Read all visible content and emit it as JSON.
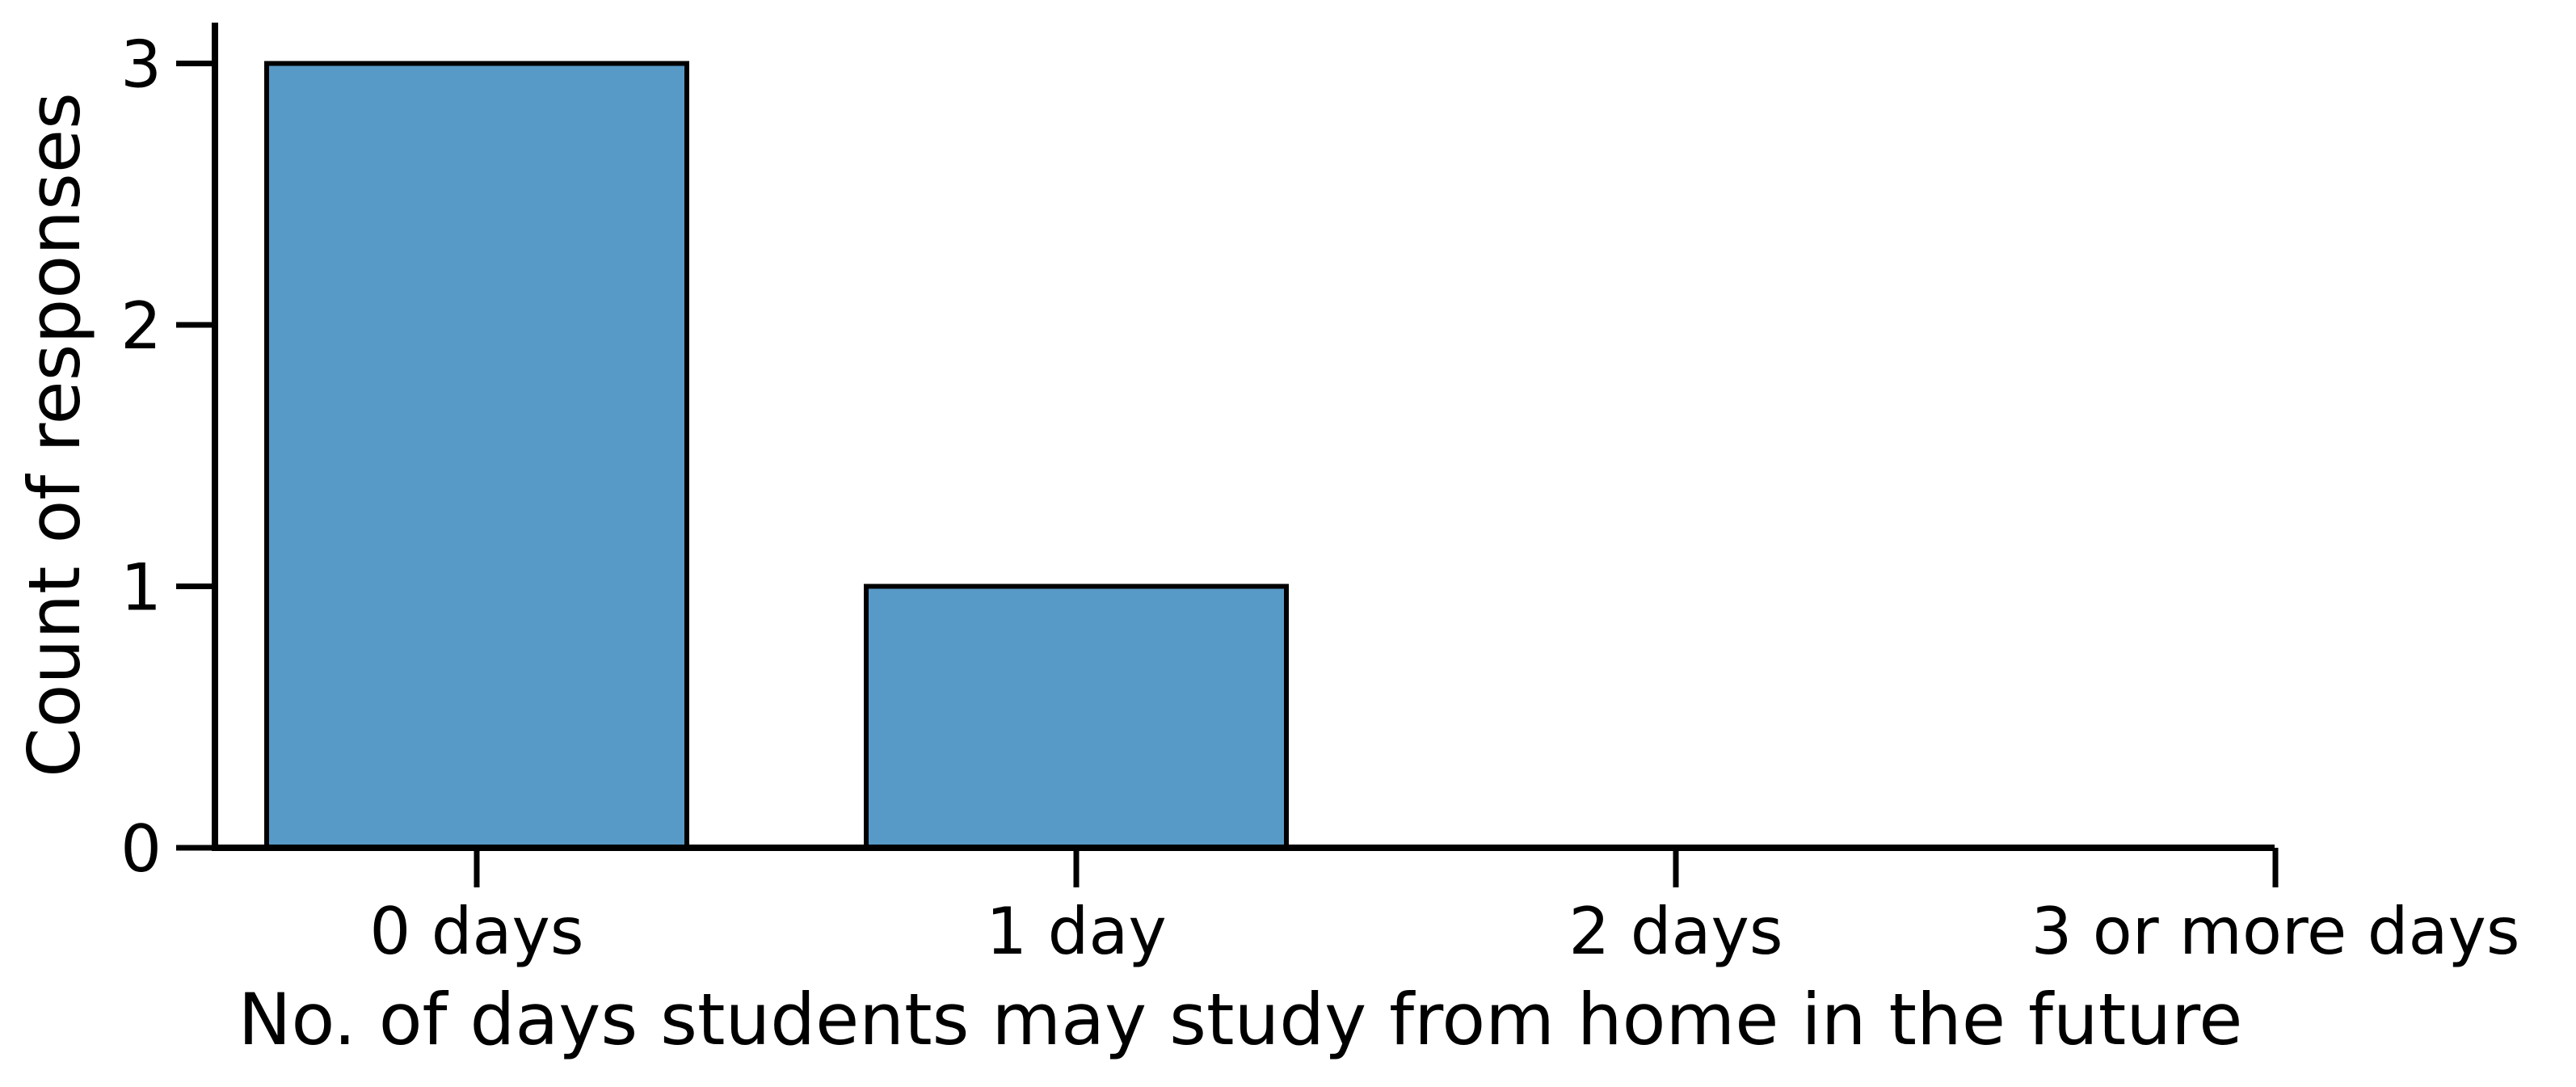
{
  "chart_data": {
    "type": "bar",
    "categories": [
      "0 days",
      "1 day",
      "2 days",
      "3 or more days"
    ],
    "values": [
      3,
      1,
      0,
      0
    ],
    "title": "",
    "xlabel": "No. of days students may study from home in the future",
    "ylabel": "Count of responses",
    "ylim": [
      0,
      3.15
    ],
    "yticks": [
      "0",
      "1",
      "2",
      "3"
    ],
    "grid": false,
    "bar_color": "#5799c7",
    "edge_color": "#000000"
  }
}
